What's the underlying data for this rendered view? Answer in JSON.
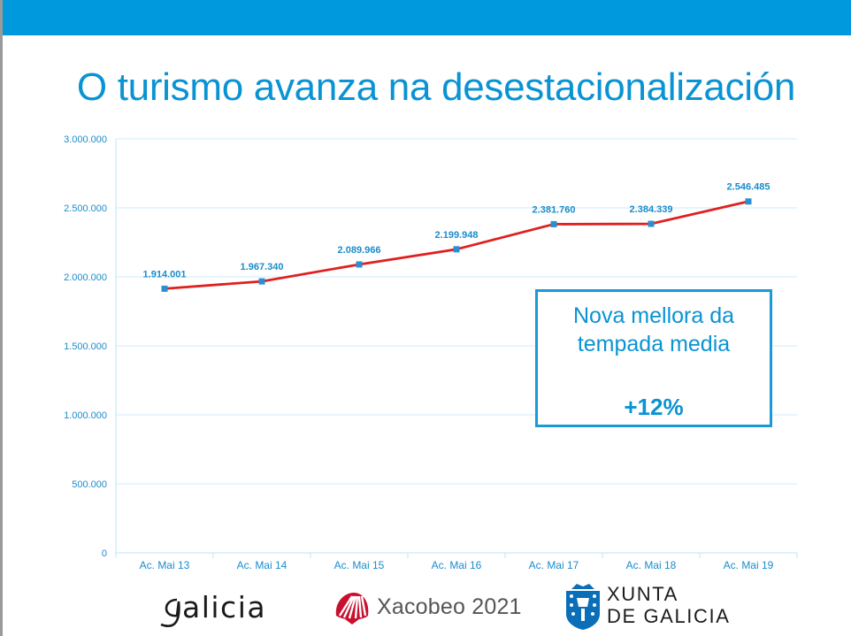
{
  "slide": {
    "title": "O turismo avanza na desestacionalización"
  },
  "callout": {
    "line1": "Nova mellora da",
    "line2": "tempada media",
    "value": "+12%"
  },
  "logos": {
    "galicia": "galicia",
    "xacobeo": "Xacobeo 2021",
    "xunta_line1": "XUNTA",
    "xunta_line2": "DE GALICIA"
  },
  "colors": {
    "accent": "#0099dd",
    "line": "#e02020",
    "marker": "#2a8fd0",
    "label": "#1a8ccc"
  },
  "chart_data": {
    "type": "line",
    "title": "",
    "xlabel": "",
    "ylabel": "",
    "categories": [
      "Ac. Mai 13",
      "Ac. Mai 14",
      "Ac. Mai 15",
      "Ac. Mai 16",
      "Ac. Mai 17",
      "Ac. Mai 18",
      "Ac. Mai 19"
    ],
    "series": [
      {
        "values": [
          1914001,
          1967340,
          2089966,
          2199948,
          2381760,
          2384339,
          2546485
        ],
        "labels": [
          "1.914.001",
          "1.967.340",
          "2.089.966",
          "2.199.948",
          "2.381.760",
          "2.384.339",
          "2.546.485"
        ]
      }
    ],
    "ylim": [
      0,
      3000000
    ],
    "yticks": [
      0,
      500000,
      1000000,
      1500000,
      2000000,
      2500000,
      3000000
    ],
    "ytick_labels": [
      "0",
      "500.000",
      "1.000.000",
      "1.500.000",
      "2.000.000",
      "2.500.000",
      "3.000.000"
    ],
    "grid": true,
    "legend": "none"
  }
}
